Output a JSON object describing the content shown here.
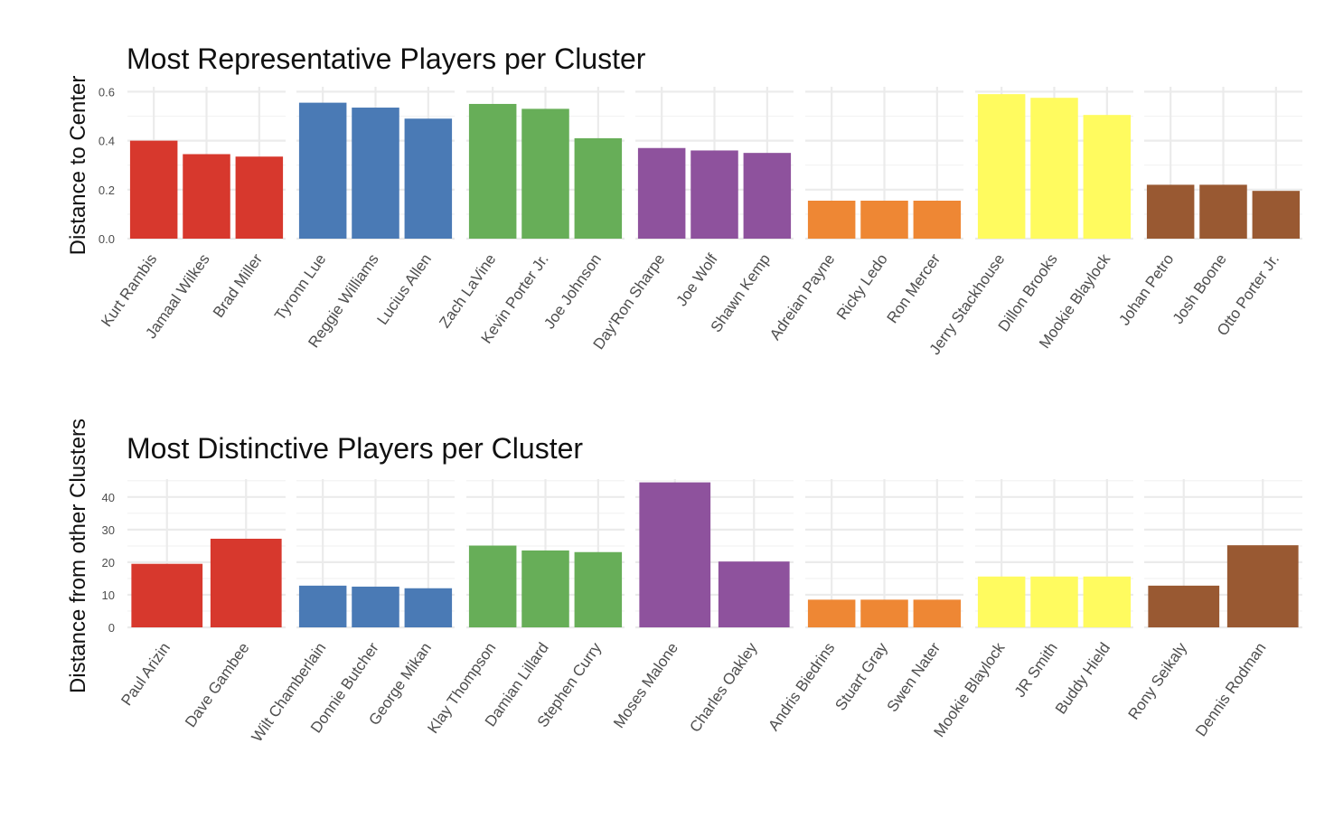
{
  "chart_data": [
    {
      "type": "bar",
      "title": "Most Representative Players per Cluster",
      "xlabel": "",
      "ylabel": "Distance to Center",
      "ylim": [
        0,
        0.62
      ],
      "yticks": [
        "0.0",
        "0.2",
        "0.4",
        "0.6"
      ],
      "grid": true,
      "facets": [
        {
          "color": "#D7382D",
          "categories": [
            "Kurt Rambis",
            "Jamaal Wilkes",
            "Brad Miller"
          ],
          "values": [
            0.4,
            0.345,
            0.335
          ]
        },
        {
          "color": "#4A7AB5",
          "categories": [
            "Tyronn Lue",
            "Reggie Williams",
            "Lucius Allen"
          ],
          "values": [
            0.555,
            0.535,
            0.49
          ]
        },
        {
          "color": "#67AE58",
          "categories": [
            "Zach LaVine",
            "Kevin Porter Jr.",
            "Joe Johnson"
          ],
          "values": [
            0.55,
            0.53,
            0.41
          ]
        },
        {
          "color": "#8E529D",
          "categories": [
            "Day'Ron Sharpe",
            "Joe Wolf",
            "Shawn Kemp"
          ],
          "values": [
            0.37,
            0.36,
            0.35
          ]
        },
        {
          "color": "#EE8734",
          "categories": [
            "Adreian Payne",
            "Ricky Ledo",
            "Ron Mercer"
          ],
          "values": [
            0.155,
            0.155,
            0.155
          ]
        },
        {
          "color": "#FFFB5F",
          "categories": [
            "Jerry Stackhouse",
            "Dillon Brooks",
            "Mookie Blaylock"
          ],
          "values": [
            0.59,
            0.575,
            0.505
          ]
        },
        {
          "color": "#995932",
          "categories": [
            "Johan Petro",
            "Josh Boone",
            "Otto Porter Jr."
          ],
          "values": [
            0.22,
            0.22,
            0.195
          ]
        }
      ]
    },
    {
      "type": "bar",
      "title": "Most Distinctive Players per Cluster",
      "xlabel": "",
      "ylabel": "Distance from other Clusters",
      "ylim": [
        0,
        45.5
      ],
      "yticks": [
        "0",
        "10",
        "20",
        "30",
        "40"
      ],
      "grid": true,
      "facets": [
        {
          "color": "#D7382D",
          "categories": [
            "Paul Arizin",
            "Dave Gambee"
          ],
          "values": [
            19.5,
            27.2
          ]
        },
        {
          "color": "#4A7AB5",
          "categories": [
            "Wilt Chamberlain",
            "Donnie Butcher",
            "George Mikan"
          ],
          "values": [
            12.8,
            12.5,
            12.0
          ]
        },
        {
          "color": "#67AE58",
          "categories": [
            "Klay Thompson",
            "Damian Lillard",
            "Stephen Curry"
          ],
          "values": [
            25.1,
            23.6,
            23.1
          ]
        },
        {
          "color": "#8E529D",
          "categories": [
            "Moses Malone",
            "Charles Oakley"
          ],
          "values": [
            44.5,
            20.2
          ]
        },
        {
          "color": "#EE8734",
          "categories": [
            "Andris Biedrins",
            "Stuart Gray",
            "Swen Nater"
          ],
          "values": [
            8.5,
            8.5,
            8.5
          ]
        },
        {
          "color": "#FFFB5F",
          "categories": [
            "Mookie Blaylock",
            "JR Smith",
            "Buddy Hield"
          ],
          "values": [
            15.6,
            15.6,
            15.6
          ]
        },
        {
          "color": "#995932",
          "categories": [
            "Rony Seikaly",
            "Dennis Rodman"
          ],
          "values": [
            12.8,
            25.2
          ]
        }
      ]
    }
  ]
}
